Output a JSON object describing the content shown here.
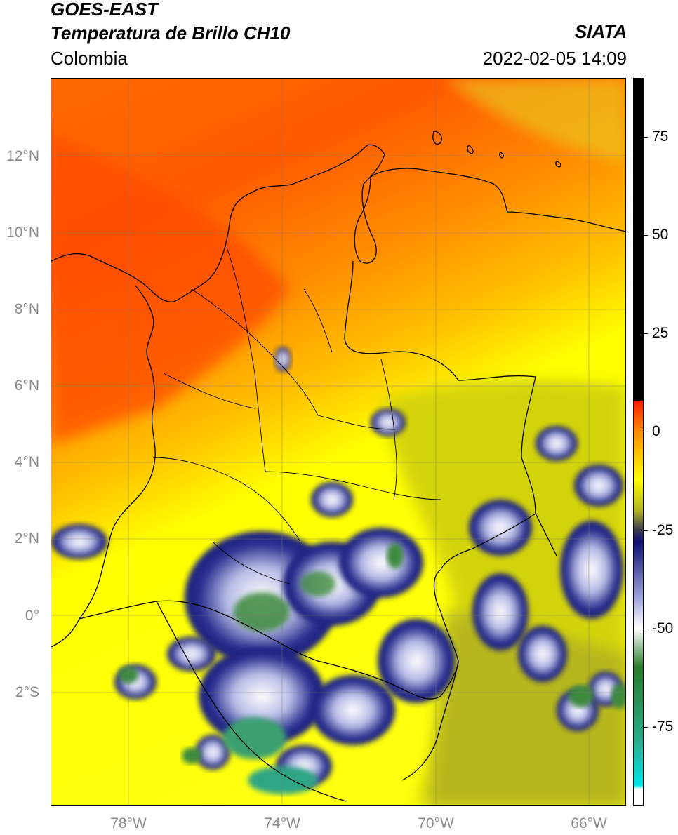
{
  "header": {
    "title_line1": "GOES-EAST",
    "title_line2": "Temperatura de Brillo CH10",
    "region": "Colombia",
    "brand": "SIATA",
    "datetime": "2022-02-05 14:09"
  },
  "map": {
    "lat_labels": [
      "12°N",
      "10°N",
      "8°N",
      "6°N",
      "4°N",
      "2°N",
      "0°",
      "2°S"
    ],
    "lon_labels": [
      "78°W",
      "74°W",
      "70°W",
      "66°W"
    ],
    "extent": {
      "lon_min": -80.0,
      "lon_max": -65.0,
      "lat_min": -5.0,
      "lat_max": 14.0
    },
    "colors": {
      "warm_red": "#ff4d00",
      "orange": "#ff8c00",
      "yellow": "#ffff00",
      "olive": "#b5b520",
      "navy": "#1a1f7a",
      "white": "#ffffff",
      "green": "#3d8a3d",
      "teal": "#2fa585"
    }
  },
  "colorbar": {
    "labels": [
      "75",
      "50",
      "25",
      "0",
      "-25",
      "-50",
      "-75"
    ],
    "range": [
      -95,
      90
    ],
    "stops": [
      {
        "value": 90,
        "color": "#000000"
      },
      {
        "value": 8,
        "color": "#000000"
      },
      {
        "value": 7.9,
        "color": "#ff1a00"
      },
      {
        "value": 0,
        "color": "#ff8c00"
      },
      {
        "value": -12,
        "color": "#ffff00"
      },
      {
        "value": -20,
        "color": "#b3b320"
      },
      {
        "value": -25,
        "color": "#3a3a50"
      },
      {
        "value": -28,
        "color": "#0d1070"
      },
      {
        "value": -42,
        "color": "#9aa0d8"
      },
      {
        "value": -50,
        "color": "#ffffff"
      },
      {
        "value": -60,
        "color": "#2a7a2a"
      },
      {
        "value": -78,
        "color": "#2aaa88"
      },
      {
        "value": -90,
        "color": "#00e5e5"
      },
      {
        "value": -91,
        "color": "#ffffff"
      },
      {
        "value": -95,
        "color": "#ffffff"
      }
    ]
  }
}
